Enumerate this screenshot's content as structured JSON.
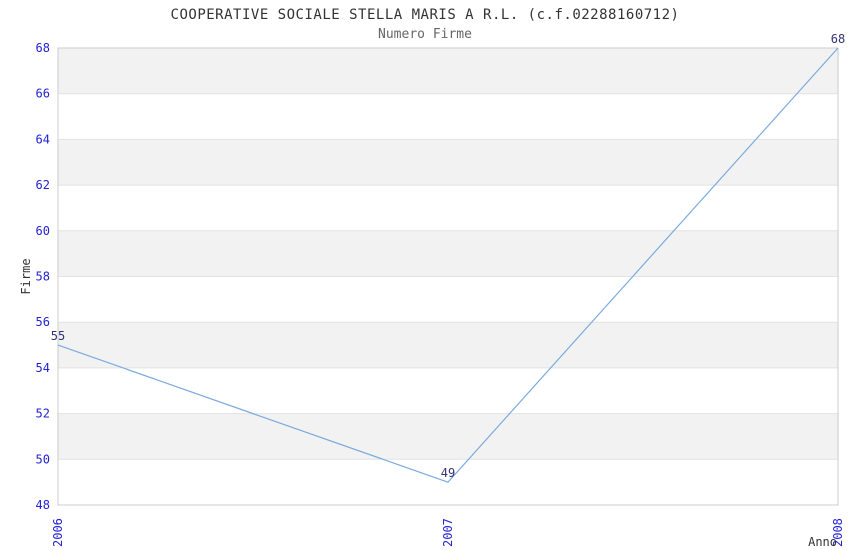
{
  "header": {
    "title": "COOPERATIVE SOCIALE STELLA MARIS A R.L. (c.f.02288160712)",
    "subtitle": "Numero Firme"
  },
  "chart_data": {
    "type": "line",
    "title": "COOPERATIVE SOCIALE STELLA MARIS A R.L. (c.f.02288160712)",
    "subtitle": "Numero Firme",
    "categories": [
      "2006",
      "2007",
      "2008"
    ],
    "values": [
      55,
      49,
      68
    ],
    "data_labels": [
      "55",
      "49",
      "68"
    ],
    "xlabel": "Anno",
    "ylabel": "Firme",
    "ylim": [
      48,
      68
    ],
    "ytick_step": 2,
    "yticks": [
      48,
      50,
      52,
      54,
      56,
      58,
      60,
      62,
      64,
      66,
      68
    ],
    "grid": "horizontal-alternating-bands",
    "legend": "none",
    "colors": {
      "line": "#7aabde",
      "tick_label": "#2323d6",
      "data_label": "#333375",
      "axis_title": "#333333",
      "band_gray": "#f2f2f2",
      "band_white": "#ffffff",
      "band_line": "#e2e2e2",
      "plot_border": "#cccccc"
    }
  }
}
